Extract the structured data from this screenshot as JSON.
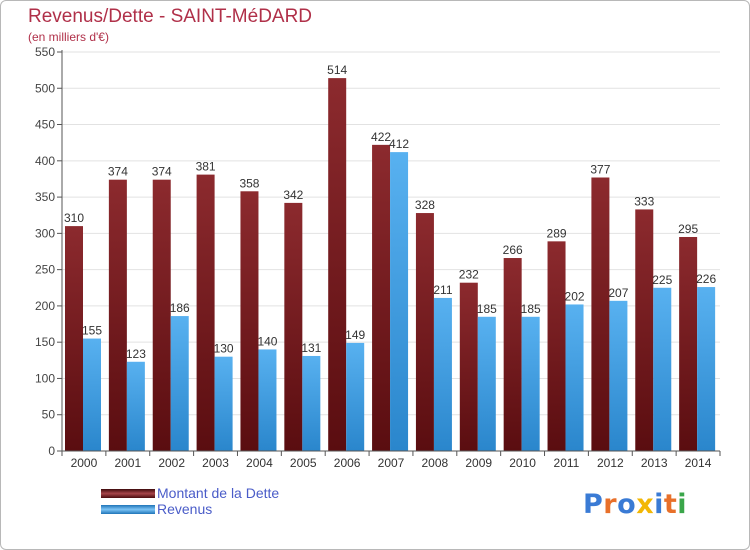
{
  "header": {
    "title": "Revenus/Dette - SAINT-MéDARD",
    "subtitle": "(en milliers d'€)"
  },
  "chart_data": {
    "type": "bar",
    "categories": [
      "2000",
      "2001",
      "2002",
      "2003",
      "2004",
      "2005",
      "2006",
      "2007",
      "2008",
      "2009",
      "2010",
      "2011",
      "2012",
      "2013",
      "2014"
    ],
    "series": [
      {
        "name": "Montant de la Dette",
        "color": "#7a1e22",
        "values": [
          310,
          374,
          374,
          381,
          358,
          342,
          514,
          422,
          328,
          232,
          266,
          289,
          377,
          333,
          295
        ]
      },
      {
        "name": "Revenus",
        "color": "#3f9de0",
        "values": [
          155,
          123,
          186,
          130,
          140,
          131,
          149,
          412,
          211,
          185,
          185,
          202,
          207,
          225,
          226
        ]
      }
    ],
    "ylim": [
      0,
      550
    ],
    "yticks": [
      0,
      50,
      100,
      150,
      200,
      250,
      300,
      350,
      400,
      450,
      500,
      550
    ],
    "grid": true,
    "legend_position": "bottom-left"
  },
  "legend": {
    "items": [
      {
        "label": "Montant de la Dette",
        "color": "#7a1e22"
      },
      {
        "label": "Revenus",
        "color": "#3f9de0"
      }
    ]
  },
  "logo": {
    "text": "Proxiti",
    "letter_colors": [
      "#3a7bd5",
      "#e8702a",
      "#3a7bd5",
      "#f2b705",
      "#3a7bd5",
      "#e8702a",
      "#3aa64a"
    ]
  }
}
